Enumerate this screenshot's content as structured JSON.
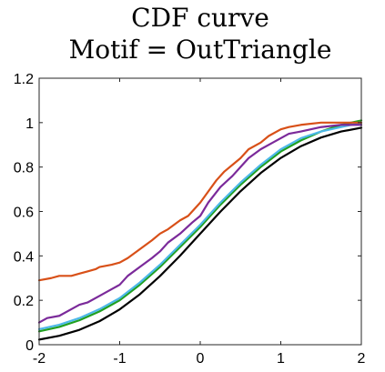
{
  "chart_data": {
    "type": "line",
    "title": [
      "CDF curve",
      "Motif = OutTriangle"
    ],
    "xlabel": "",
    "ylabel": "",
    "xlim": [
      -2,
      2
    ],
    "ylim": [
      0,
      1.2
    ],
    "x_ticks": [
      -2,
      -1,
      0,
      1,
      2
    ],
    "y_ticks": [
      0,
      0.2,
      0.4,
      0.6,
      0.8,
      1,
      1.2
    ],
    "x_tick_labels": [
      "-2",
      "-1",
      "0",
      "1",
      "2"
    ],
    "y_tick_labels": [
      "0",
      "0.2",
      "0.4",
      "0.6",
      "0.8",
      "1",
      "1.2"
    ],
    "grid": false,
    "box": true,
    "series": [
      {
        "color": "#000000",
        "x": [
          -2,
          -1.75,
          -1.5,
          -1.25,
          -1,
          -0.75,
          -0.5,
          -0.25,
          0,
          0.25,
          0.5,
          0.75,
          1,
          1.25,
          1.5,
          1.75,
          2
        ],
        "y": [
          0.023,
          0.04,
          0.067,
          0.106,
          0.159,
          0.227,
          0.309,
          0.401,
          0.5,
          0.599,
          0.691,
          0.773,
          0.841,
          0.894,
          0.933,
          0.96,
          0.977
        ]
      },
      {
        "color": "#20a020",
        "x": [
          -2,
          -1.75,
          -1.5,
          -1.25,
          -1,
          -0.75,
          -0.5,
          -0.25,
          0,
          0.25,
          0.5,
          0.75,
          1,
          1.25,
          1.5,
          1.75,
          2
        ],
        "y": [
          0.06,
          0.08,
          0.11,
          0.15,
          0.2,
          0.27,
          0.35,
          0.44,
          0.53,
          0.63,
          0.72,
          0.8,
          0.87,
          0.92,
          0.96,
          0.99,
          1.01
        ]
      },
      {
        "color": "#4db8e8",
        "x": [
          -2,
          -1.75,
          -1.5,
          -1.25,
          -1,
          -0.75,
          -0.5,
          -0.25,
          0,
          0.25,
          0.5,
          0.75,
          1,
          1.25,
          1.5,
          1.75,
          2
        ],
        "y": [
          0.07,
          0.09,
          0.12,
          0.16,
          0.21,
          0.28,
          0.36,
          0.45,
          0.54,
          0.64,
          0.73,
          0.81,
          0.88,
          0.93,
          0.96,
          0.98,
          1.0
        ]
      },
      {
        "color": "#7b2a9a",
        "x": [
          -2,
          -1.9,
          -1.75,
          -1.6,
          -1.5,
          -1.4,
          -1.25,
          -1.1,
          -1,
          -0.9,
          -0.75,
          -0.6,
          -0.5,
          -0.4,
          -0.25,
          -0.1,
          0,
          0.1,
          0.25,
          0.4,
          0.5,
          0.6,
          0.75,
          0.9,
          1,
          1.1,
          1.25,
          1.5,
          1.75,
          2
        ],
        "y": [
          0.1,
          0.12,
          0.13,
          0.16,
          0.18,
          0.19,
          0.22,
          0.25,
          0.27,
          0.31,
          0.35,
          0.39,
          0.42,
          0.46,
          0.5,
          0.55,
          0.58,
          0.64,
          0.71,
          0.76,
          0.8,
          0.84,
          0.88,
          0.91,
          0.93,
          0.95,
          0.96,
          0.98,
          0.99,
          0.99
        ]
      },
      {
        "color": "#d85018",
        "x": [
          -2,
          -1.85,
          -1.75,
          -1.6,
          -1.5,
          -1.4,
          -1.3,
          -1.25,
          -1.1,
          -1,
          -0.9,
          -0.75,
          -0.6,
          -0.5,
          -0.4,
          -0.25,
          -0.15,
          -0.05,
          0,
          0.1,
          0.2,
          0.3,
          0.4,
          0.5,
          0.6,
          0.75,
          0.85,
          1,
          1.1,
          1.25,
          1.5,
          1.75,
          2
        ],
        "y": [
          0.29,
          0.3,
          0.31,
          0.31,
          0.32,
          0.33,
          0.34,
          0.35,
          0.36,
          0.37,
          0.39,
          0.43,
          0.47,
          0.5,
          0.52,
          0.56,
          0.58,
          0.62,
          0.64,
          0.69,
          0.74,
          0.78,
          0.81,
          0.84,
          0.88,
          0.91,
          0.94,
          0.97,
          0.98,
          0.99,
          1.0,
          1.0,
          1.0
        ]
      }
    ]
  }
}
